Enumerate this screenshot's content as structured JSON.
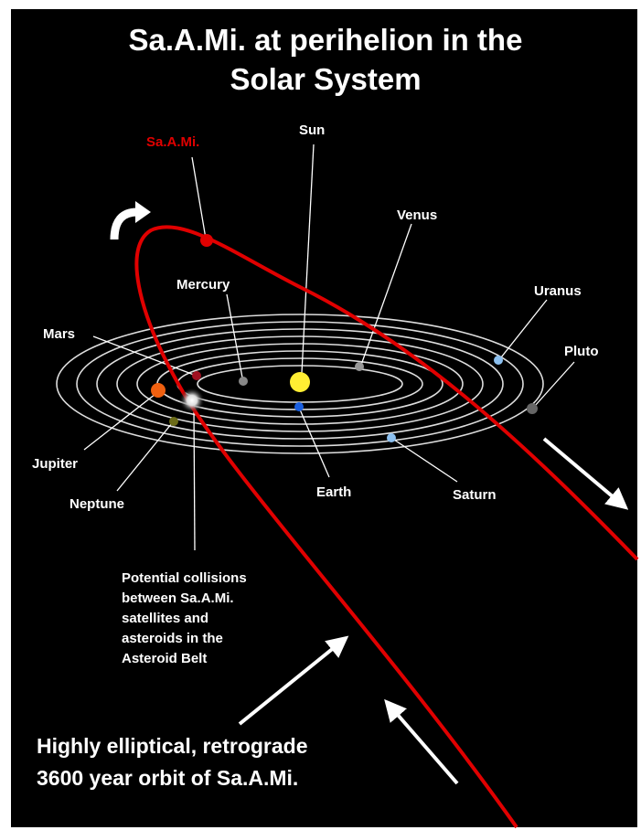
{
  "title": [
    "Sa.A.Mi. at perihelion in the",
    "Solar System"
  ],
  "labels": {
    "samiLabel": "Sa.A.Mi.",
    "sun": "Sun",
    "venus": "Venus",
    "mercury": "Mercury",
    "mars": "Mars",
    "uranus": "Uranus",
    "pluto": "Pluto",
    "jupiter": "Jupiter",
    "neptune": "Neptune",
    "earth": "Earth",
    "saturn": "Saturn"
  },
  "annotation": [
    "Potential collisions",
    "between Sa.A.Mi.",
    "satellites and",
    "asteroids in the",
    "Asteroid Belt"
  ],
  "caption": [
    "Highly elliptical, retrograde",
    "3600 year orbit of Sa.A.Mi."
  ]
}
